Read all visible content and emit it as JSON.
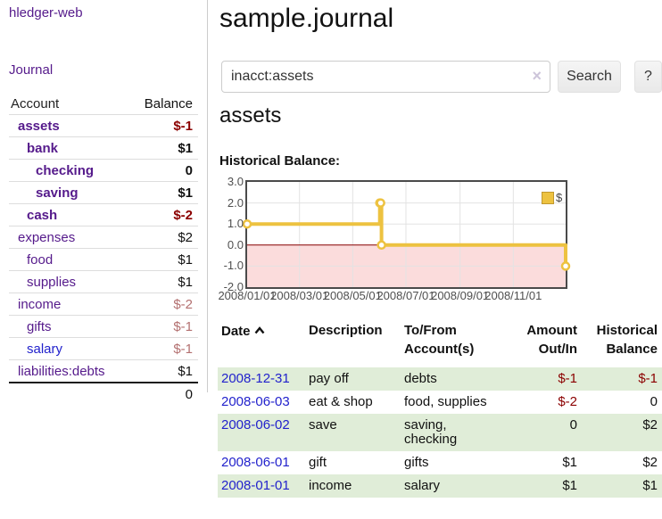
{
  "colors": {
    "accent_purple": "#551a8b",
    "link_blue": "#2222cc",
    "negative_red": "#8b0000",
    "soft_negative_red": "#b37070",
    "row_stripe_green": "#e0edd8",
    "series_yellow": "#edc240"
  },
  "app": {
    "brand": "hledger-web",
    "nav": {
      "journal": "Journal"
    }
  },
  "sidebar": {
    "header": {
      "account": "Account",
      "balance": "Balance"
    },
    "accounts": [
      {
        "name": "assets",
        "balance": "$-1"
      },
      {
        "name": "bank",
        "balance": "$1"
      },
      {
        "name": "checking",
        "balance": "0"
      },
      {
        "name": "saving",
        "balance": "$1"
      },
      {
        "name": "cash",
        "balance": "$-2"
      },
      {
        "name": "expenses",
        "balance": "$2"
      },
      {
        "name": "food",
        "balance": "$1"
      },
      {
        "name": "supplies",
        "balance": "$1"
      },
      {
        "name": "income",
        "balance": "$-2"
      },
      {
        "name": "gifts",
        "balance": "$-1"
      },
      {
        "name": "salary",
        "balance": "$-1"
      },
      {
        "name": "liabilities:debts",
        "balance": "$1"
      }
    ],
    "total": "0"
  },
  "main": {
    "title": "sample.journal",
    "search": {
      "value": "inacct:assets",
      "clear_icon": "×",
      "search_button": "Search",
      "help_button": "?"
    },
    "account_heading": "assets",
    "chart_heading": "Historical Balance:"
  },
  "chart_data": {
    "type": "line",
    "title": "Historical Balance",
    "legend_label": "$",
    "legend_position": "top-right",
    "grid": true,
    "x_start": "2008-01-01",
    "x_end": "2008-12-31",
    "ylim": [
      -2,
      3
    ],
    "yticks": [
      "3.0",
      "2.0",
      "1.0",
      "0.0",
      "-1.0",
      "-2.0"
    ],
    "xticks": [
      "2008/01/01",
      "2008/03/01",
      "2008/05/01",
      "2008/07/01",
      "2008/09/01",
      "2008/11/01"
    ],
    "series": [
      {
        "name": "$",
        "color": "#edc240",
        "step": true,
        "points": [
          [
            "2008-01-01",
            1
          ],
          [
            "2008-06-01",
            2
          ],
          [
            "2008-06-02",
            2
          ],
          [
            "2008-06-03",
            0
          ],
          [
            "2008-12-31",
            -1
          ]
        ]
      }
    ],
    "negative_region_fill": "#fbdcdc",
    "zero_line_color": "#8b0000"
  },
  "register": {
    "headers": {
      "date": "Date",
      "description": "Description",
      "tofrom_line1": "To/From",
      "tofrom_line2": "Account(s)",
      "amount_line1": "Amount",
      "amount_line2": "Out/In",
      "balance_line1": "Historical",
      "balance_line2": "Balance"
    },
    "rows": [
      {
        "date": "2008-12-31",
        "description": "pay off",
        "accounts": "debts",
        "amount": "$-1",
        "balance": "$-1"
      },
      {
        "date": "2008-06-03",
        "description": "eat & shop",
        "accounts": "food, supplies",
        "amount": "$-2",
        "balance": "0"
      },
      {
        "date": "2008-06-02",
        "description": "save",
        "accounts": "saving, checking",
        "amount": "0",
        "balance": "$2"
      },
      {
        "date": "2008-06-01",
        "description": "gift",
        "accounts": "gifts",
        "amount": "$1",
        "balance": "$2"
      },
      {
        "date": "2008-01-01",
        "description": "income",
        "accounts": "salary",
        "amount": "$1",
        "balance": "$1"
      }
    ]
  }
}
